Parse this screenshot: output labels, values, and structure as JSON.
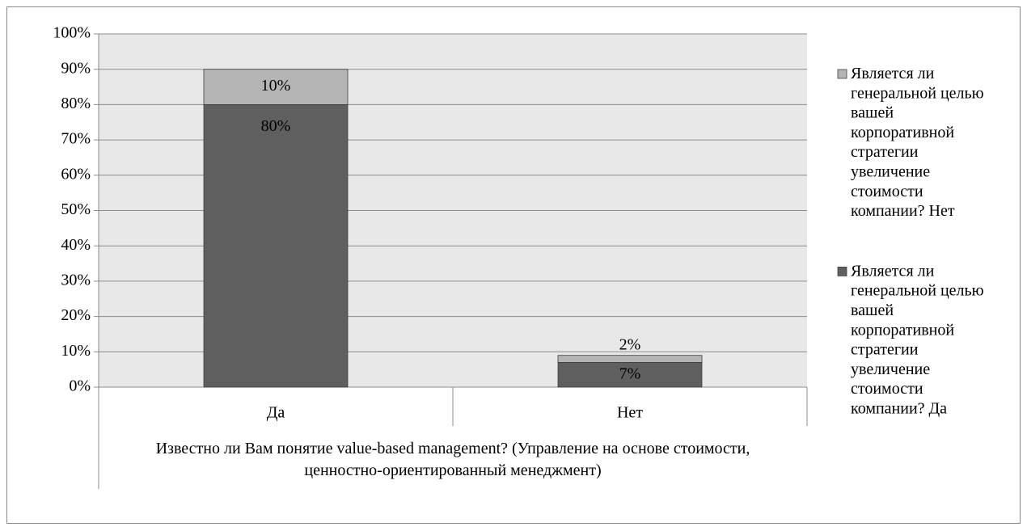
{
  "chart_data": {
    "type": "stacked-bar",
    "categories": [
      "Да",
      "Нет"
    ],
    "group_label": "Известно ли Вам понятие value-based management? (Управление на основе стоимости, ценностно-ориентированный менеджмент)",
    "series": [
      {
        "name": "Является ли генеральной целью вашей корпоративной стратегии увеличение стоимости компании? Да",
        "color": "#5f5f5f",
        "values": [
          80,
          7
        ],
        "value_labels": [
          "80%",
          "7%"
        ]
      },
      {
        "name": "Является ли генеральной целью вашей корпоративной стратегии увеличение стоимости компании? Нет",
        "color": "#b4b4b4",
        "values": [
          10,
          2
        ],
        "value_labels": [
          "10%",
          "2%"
        ]
      }
    ],
    "ylim": [
      0,
      100
    ],
    "yticks": [
      {
        "value": 0,
        "label": "0%"
      },
      {
        "value": 10,
        "label": "10%"
      },
      {
        "value": 20,
        "label": "20%"
      },
      {
        "value": 30,
        "label": "30%"
      },
      {
        "value": 40,
        "label": "40%"
      },
      {
        "value": 50,
        "label": "50%"
      },
      {
        "value": 60,
        "label": "60%"
      },
      {
        "value": 70,
        "label": "70%"
      },
      {
        "value": 80,
        "label": "80%"
      },
      {
        "value": 90,
        "label": "90%"
      },
      {
        "value": 100,
        "label": "100%"
      }
    ],
    "grid": true,
    "legend": "right"
  }
}
